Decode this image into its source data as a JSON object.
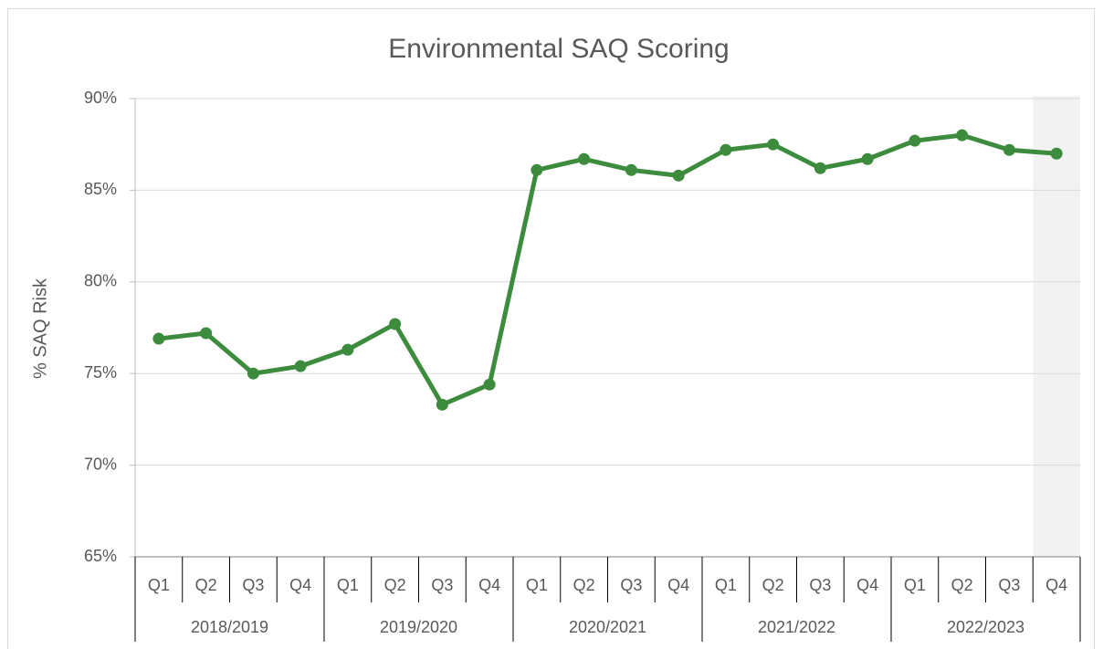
{
  "chart_data": {
    "type": "line",
    "title": "Environmental SAQ Scoring",
    "ylabel": "% SAQ Risk",
    "groups": [
      {
        "label": "2018/2019",
        "categories": [
          "Q1",
          "Q2",
          "Q3",
          "Q4"
        ]
      },
      {
        "label": "2019/2020",
        "categories": [
          "Q1",
          "Q2",
          "Q3",
          "Q4"
        ]
      },
      {
        "label": "2020/2021",
        "categories": [
          "Q1",
          "Q2",
          "Q3",
          "Q4"
        ]
      },
      {
        "label": "2021/2022",
        "categories": [
          "Q1",
          "Q2",
          "Q3",
          "Q4"
        ]
      },
      {
        "label": "2022/2023",
        "categories": [
          "Q1",
          "Q2",
          "Q3",
          "Q4"
        ]
      }
    ],
    "values": [
      76.9,
      77.2,
      75.0,
      75.4,
      76.3,
      77.7,
      73.3,
      74.4,
      86.1,
      86.7,
      86.1,
      85.8,
      87.2,
      87.5,
      86.2,
      86.7,
      87.7,
      88.0,
      87.2,
      87.0
    ],
    "color": "#3d8b3d",
    "ylim": [
      65,
      90
    ],
    "yticks": [
      {
        "value": 65,
        "label": "65%"
      },
      {
        "value": 70,
        "label": "70%"
      },
      {
        "value": 75,
        "label": "75%"
      },
      {
        "value": 80,
        "label": "80%"
      },
      {
        "value": 85,
        "label": "85%"
      },
      {
        "value": 90,
        "label": "90%"
      }
    ],
    "grid": true,
    "highlight_index": 19,
    "highlight_color": "#f2f2f2"
  }
}
